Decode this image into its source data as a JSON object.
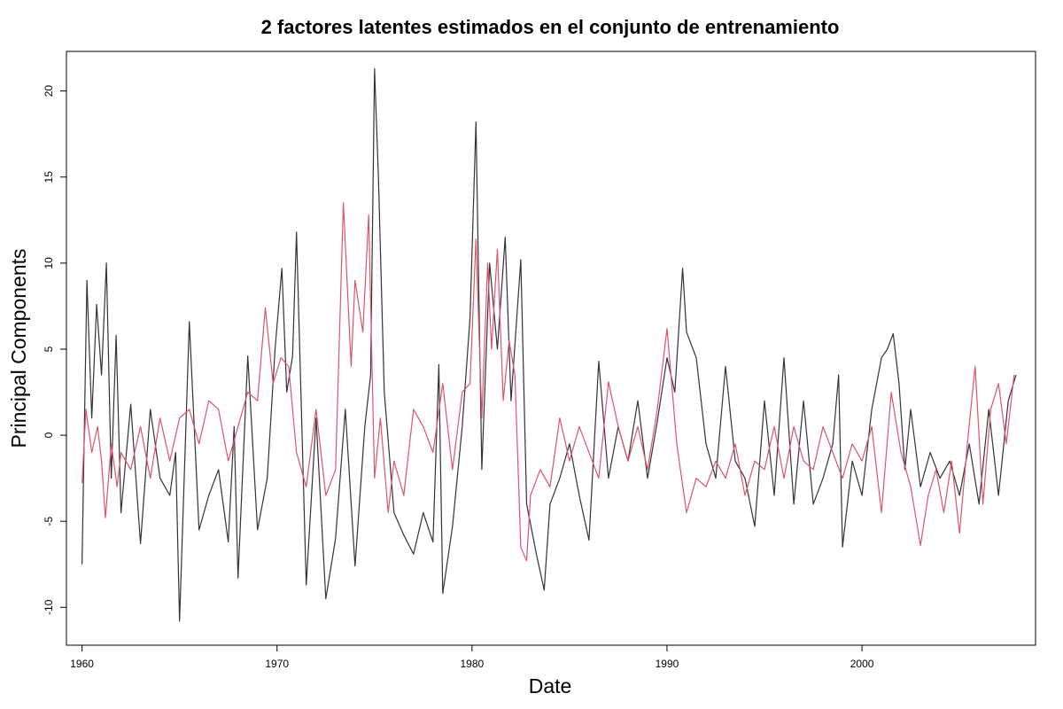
{
  "chart_data": {
    "type": "line",
    "title": "2 factores latentes estimados en el conjunto de entrenamiento",
    "xlabel": "Date",
    "ylabel": "Principal Components",
    "xlim": [
      1959.2,
      2008.9
    ],
    "ylim": [
      -12.2,
      22.3
    ],
    "xticks": [
      1960,
      1970,
      1980,
      1990,
      2000
    ],
    "xtick_labels": [
      "1960",
      "1970",
      "1980",
      "1990",
      "2000"
    ],
    "yticks": [
      -10,
      -5,
      0,
      5,
      10,
      15,
      20
    ],
    "ytick_labels": [
      "-10",
      "-5",
      "0",
      "5",
      "10",
      "15",
      "20"
    ],
    "grid": false,
    "legend": "none",
    "series": [
      {
        "color": "#333333",
        "x": [
          1960.0,
          1960.25,
          1960.5,
          1960.75,
          1961.0,
          1961.25,
          1961.5,
          1961.75,
          1962.0,
          1962.5,
          1963.0,
          1963.5,
          1964.0,
          1964.5,
          1964.8,
          1965.0,
          1965.5,
          1966.0,
          1966.5,
          1967.0,
          1967.5,
          1967.8,
          1968.0,
          1968.5,
          1969.0,
          1969.5,
          1969.9,
          1970.25,
          1970.5,
          1970.8,
          1971.0,
          1971.5,
          1972.0,
          1972.5,
          1973.0,
          1973.5,
          1974.0,
          1974.5,
          1974.8,
          1975.0,
          1975.2,
          1975.5,
          1976.0,
          1976.5,
          1977.0,
          1977.5,
          1978.0,
          1978.3,
          1978.5,
          1979.0,
          1979.5,
          1979.9,
          1980.2,
          1980.5,
          1980.9,
          1981.3,
          1981.7,
          1982.0,
          1982.5,
          1982.8,
          1983.3,
          1983.7,
          1984.0,
          1984.5,
          1985.0,
          1985.5,
          1986.0,
          1986.5,
          1987.0,
          1987.5,
          1988.0,
          1988.5,
          1989.0,
          1989.5,
          1990.0,
          1990.4,
          1990.8,
          1991.0,
          1991.5,
          1992.0,
          1992.5,
          1993.0,
          1993.5,
          1994.0,
          1994.5,
          1995.0,
          1995.5,
          1996.0,
          1996.5,
          1997.0,
          1997.5,
          1998.0,
          1998.5,
          1998.8,
          1999.0,
          1999.5,
          2000.0,
          2000.5,
          2001.0,
          2001.3,
          2001.6,
          2001.9,
          2002.2,
          2002.5,
          2003.0,
          2003.5,
          2004.0,
          2004.5,
          2005.0,
          2005.5,
          2006.0,
          2006.5,
          2007.0,
          2007.5,
          2007.9
        ],
        "y": [
          -7.5,
          9.0,
          1.0,
          7.6,
          3.5,
          10.0,
          -2.5,
          5.8,
          -4.5,
          1.8,
          -6.3,
          1.5,
          -2.5,
          -3.5,
          -1.0,
          -10.8,
          6.6,
          -5.5,
          -3.5,
          -2.0,
          -6.2,
          0.5,
          -8.3,
          4.6,
          -5.5,
          -2.5,
          5.0,
          9.7,
          2.5,
          4.6,
          11.8,
          -8.7,
          1.0,
          -9.5,
          -6.0,
          1.5,
          -7.6,
          0.5,
          3.5,
          21.3,
          15.0,
          2.5,
          -4.5,
          -5.8,
          -6.9,
          -4.5,
          -6.2,
          4.1,
          -9.2,
          -5.3,
          0.5,
          6.8,
          18.2,
          -2.0,
          10.0,
          5.0,
          11.5,
          2.0,
          10.2,
          -4.0,
          -6.9,
          -9.0,
          -4.0,
          -2.5,
          -0.5,
          -3.5,
          -6.1,
          4.3,
          -2.5,
          0.5,
          -1.5,
          2.0,
          -2.5,
          0.8,
          4.5,
          2.5,
          9.7,
          6.0,
          4.5,
          -0.5,
          -2.5,
          4.0,
          -1.5,
          -2.5,
          -5.3,
          2.0,
          -3.5,
          4.5,
          -4.0,
          2.0,
          -4.0,
          -2.5,
          -0.5,
          3.5,
          -6.5,
          -1.5,
          -3.5,
          1.5,
          4.5,
          5.0,
          5.9,
          3.0,
          -2.0,
          1.5,
          -3.0,
          -1.0,
          -2.5,
          -1.5,
          -3.5,
          -0.5,
          -4.0,
          1.5,
          -3.5,
          2.0,
          3.5
        ]
      },
      {
        "color": "#DF536B",
        "x": [
          1960.0,
          1960.2,
          1960.5,
          1960.8,
          1961.0,
          1961.2,
          1961.5,
          1961.8,
          1962.0,
          1962.5,
          1963.0,
          1963.5,
          1964.0,
          1964.5,
          1965.0,
          1965.5,
          1966.0,
          1966.5,
          1967.0,
          1967.5,
          1968.0,
          1968.5,
          1969.0,
          1969.4,
          1969.8,
          1970.2,
          1970.6,
          1971.0,
          1971.5,
          1972.0,
          1972.5,
          1973.0,
          1973.4,
          1973.8,
          1974.0,
          1974.4,
          1974.7,
          1975.0,
          1975.3,
          1975.7,
          1976.0,
          1976.5,
          1977.0,
          1977.5,
          1978.0,
          1978.5,
          1979.0,
          1979.5,
          1979.9,
          1980.2,
          1980.5,
          1980.8,
          1981.0,
          1981.3,
          1981.6,
          1981.9,
          1982.2,
          1982.5,
          1982.8,
          1983.0,
          1983.5,
          1984.0,
          1984.5,
          1985.0,
          1985.5,
          1986.0,
          1986.5,
          1987.0,
          1987.5,
          1988.0,
          1988.5,
          1989.0,
          1989.5,
          1990.0,
          1990.5,
          1991.0,
          1991.5,
          1992.0,
          1992.5,
          1993.0,
          1993.5,
          1994.0,
          1994.5,
          1995.0,
          1995.5,
          1996.0,
          1996.5,
          1997.0,
          1997.5,
          1998.0,
          1998.5,
          1999.0,
          1999.5,
          2000.0,
          2000.5,
          2001.0,
          2001.5,
          2002.0,
          2002.5,
          2003.0,
          2003.4,
          2003.8,
          2004.2,
          2004.6,
          2005.0,
          2005.4,
          2005.8,
          2006.2,
          2006.6,
          2007.0,
          2007.4,
          2007.8
        ],
        "y": [
          -2.8,
          1.5,
          -1.0,
          0.5,
          -1.5,
          -4.8,
          -0.5,
          -3.0,
          -1.0,
          -2.0,
          0.5,
          -2.5,
          1.0,
          -1.5,
          1.0,
          1.5,
          -0.5,
          2.0,
          1.5,
          -1.5,
          0.5,
          2.5,
          2.0,
          7.4,
          3.0,
          4.5,
          4.0,
          -1.0,
          -3.0,
          1.5,
          -3.5,
          -2.0,
          13.5,
          4.0,
          9.0,
          6.0,
          12.8,
          -2.5,
          1.0,
          -4.5,
          -1.5,
          -3.5,
          1.5,
          0.5,
          -1.0,
          3.0,
          -2.0,
          2.5,
          3.0,
          11.4,
          1.0,
          10.0,
          5.0,
          10.8,
          2.0,
          5.5,
          3.5,
          -6.5,
          -7.3,
          -3.5,
          -2.0,
          -3.0,
          1.0,
          -1.5,
          0.5,
          -1.0,
          -2.5,
          3.1,
          0.5,
          -1.5,
          0.5,
          -2.0,
          1.5,
          6.2,
          -0.5,
          -4.5,
          -2.5,
          -3.0,
          -1.5,
          -2.5,
          -0.5,
          -3.5,
          -1.5,
          -2.0,
          0.5,
          -2.5,
          0.5,
          -1.5,
          -2.0,
          0.5,
          -1.0,
          -2.5,
          -0.5,
          -1.5,
          0.5,
          -4.5,
          2.5,
          -1.0,
          -3.0,
          -6.4,
          -3.5,
          -2.0,
          -4.5,
          -1.5,
          -5.7,
          -0.5,
          4.0,
          -4.0,
          1.5,
          3.0,
          -0.5,
          3.5
        ]
      }
    ]
  }
}
